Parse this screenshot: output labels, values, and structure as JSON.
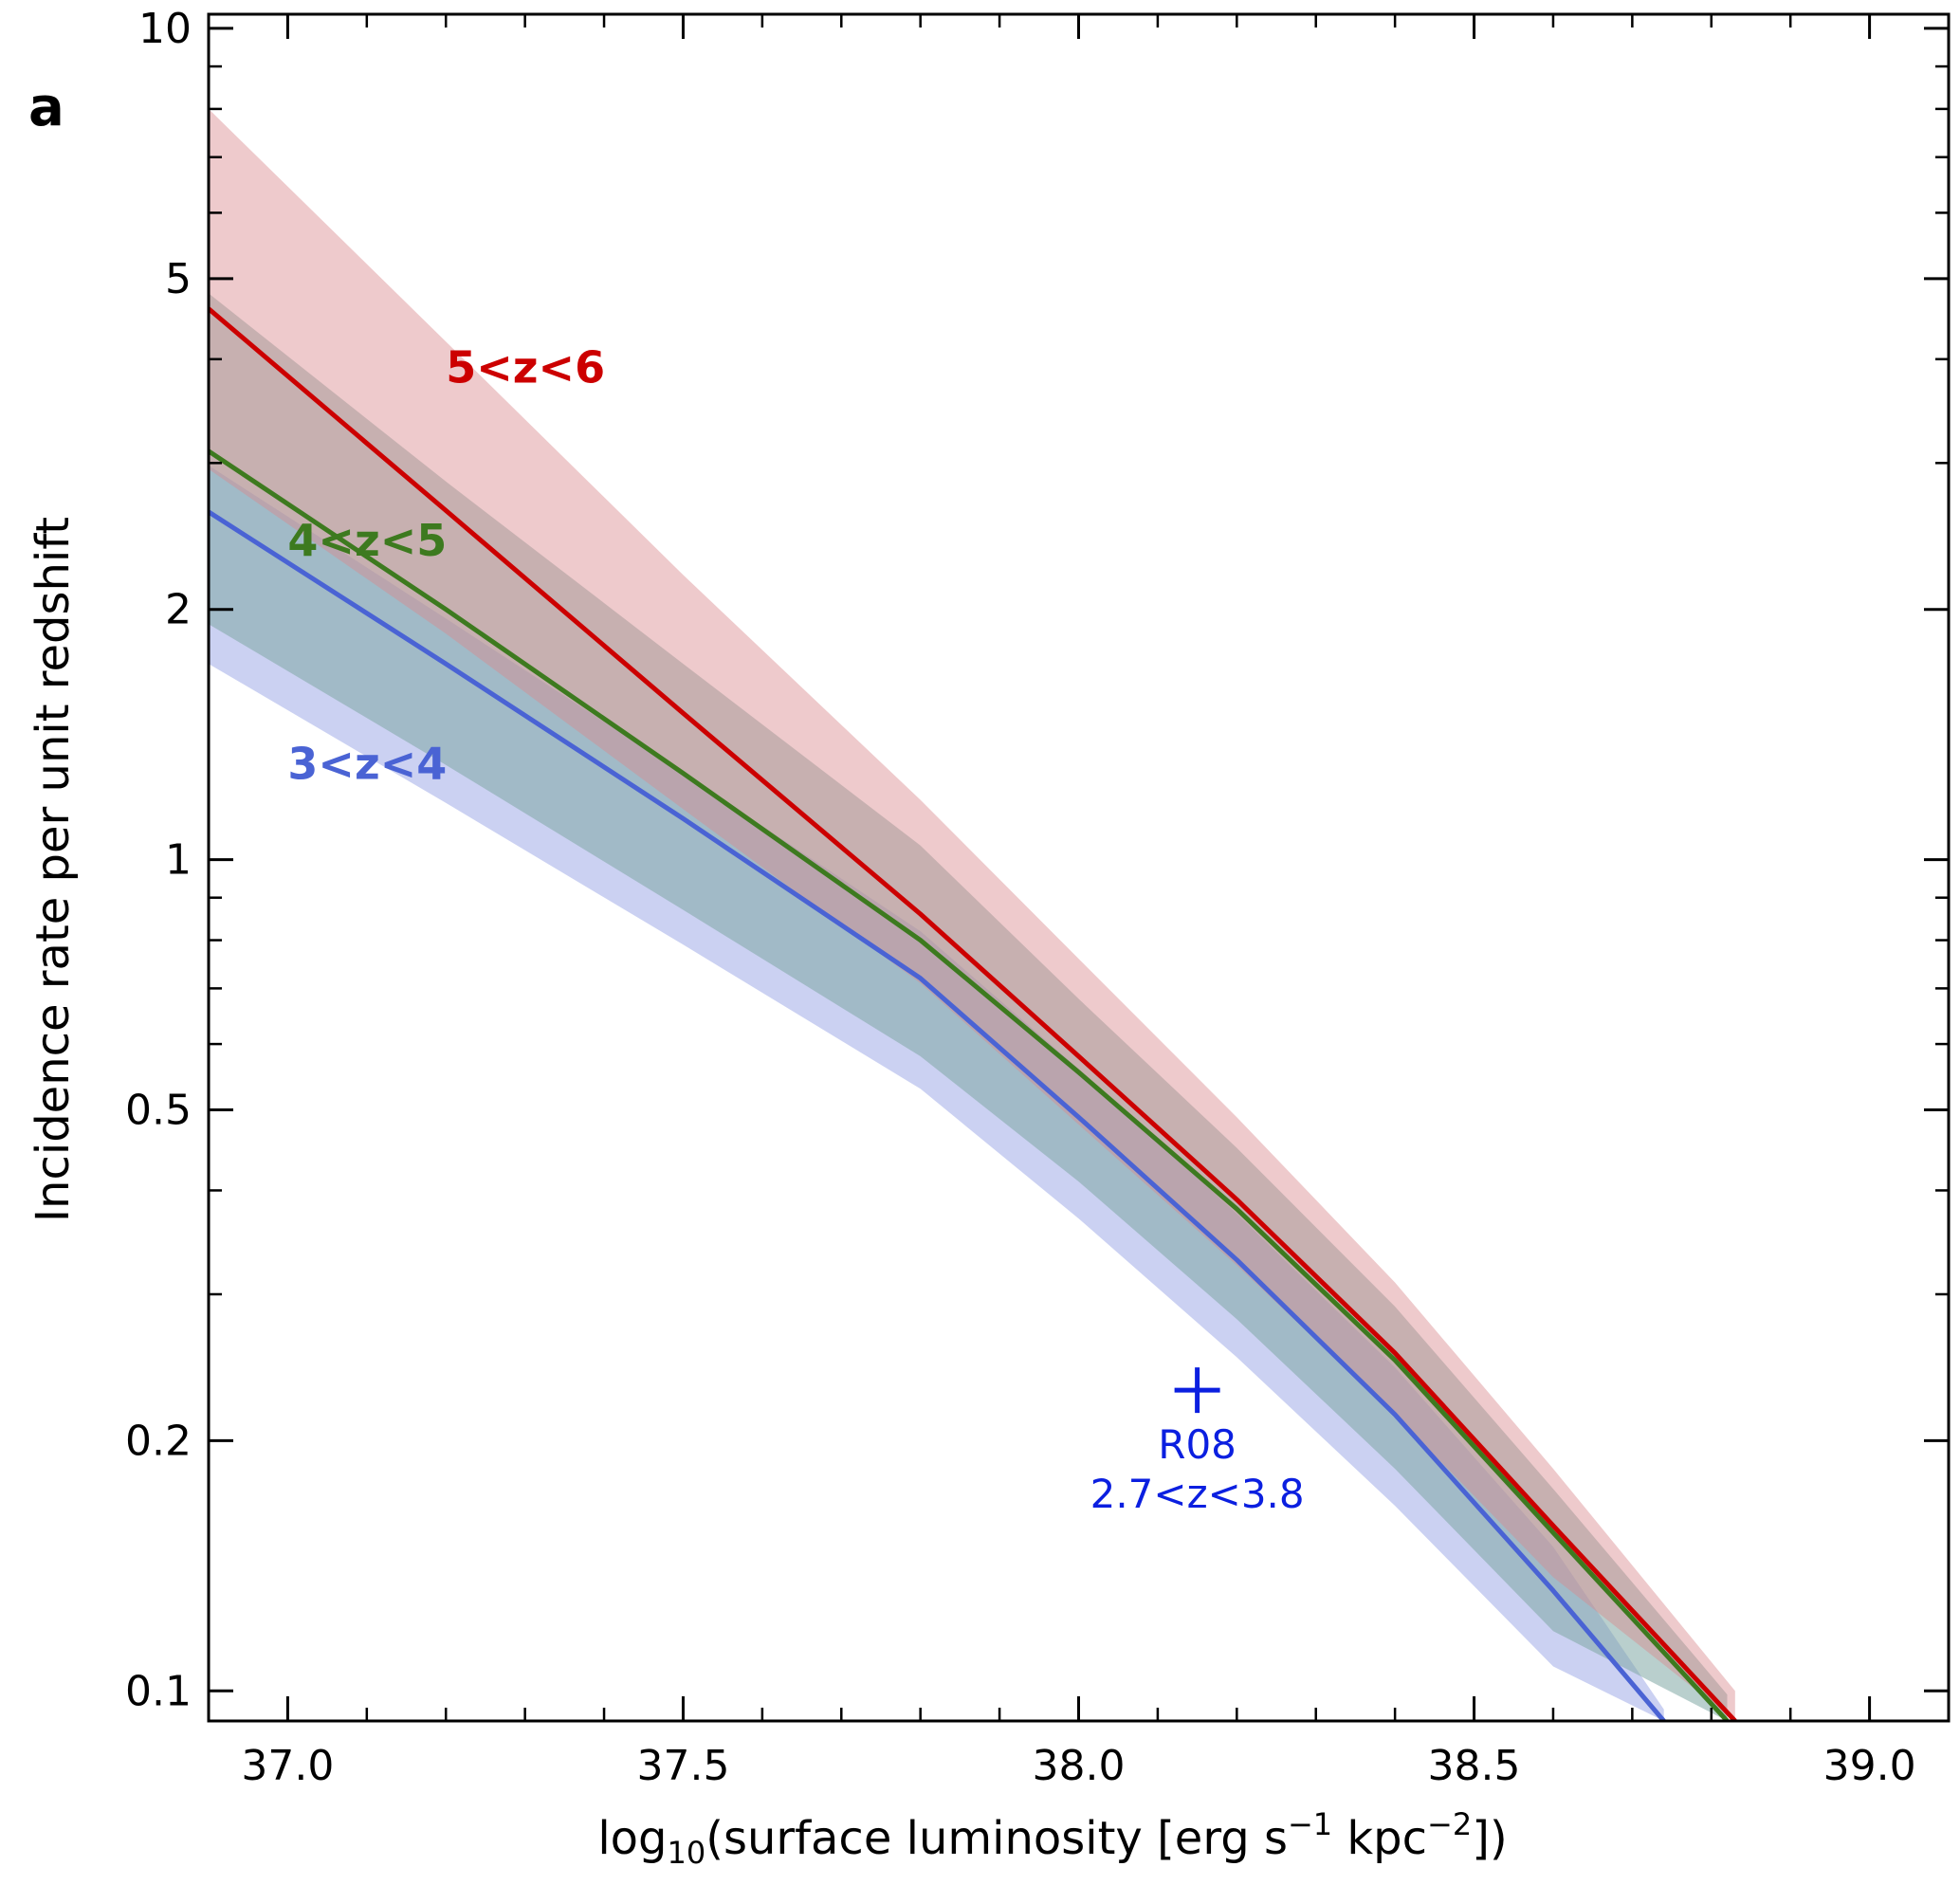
{
  "chart_data": {
    "type": "line",
    "panel_label": "a",
    "xlabel_prefix": "log",
    "xlabel_sub": "10",
    "xlabel_main": "(surface luminosity [erg s",
    "xlabel_sup1": "−1",
    "xlabel_mid": " kpc",
    "xlabel_sup2": "−2",
    "xlabel_end": "])",
    "ylabel": "Incidence rate per unit redshift",
    "xlim": [
      36.9,
      39.1
    ],
    "ylim": [
      0.092,
      10.4
    ],
    "yscale": "log",
    "x_ticks": [
      37.0,
      37.5,
      38.0,
      38.5,
      39.0
    ],
    "x_tick_labels": [
      "37.0",
      "37.5",
      "38.0",
      "38.5",
      "39.0"
    ],
    "y_ticks": [
      0.1,
      0.2,
      0.5,
      1,
      2,
      5,
      10
    ],
    "y_tick_labels": [
      "0.1",
      "0.2",
      "0.5",
      "1",
      "2",
      "5",
      "10"
    ],
    "series": [
      {
        "name": "3<z<4",
        "color": "#4a63d4",
        "band_color": "#8b98e3",
        "band_opacity": 0.45,
        "x": [
          36.9,
          37.2,
          37.5,
          37.8,
          38.0,
          38.2,
          38.4,
          38.6,
          38.74
        ],
        "y": [
          2.62,
          1.72,
          1.12,
          0.72,
          0.49,
          0.33,
          0.215,
          0.132,
          0.092
        ],
        "lower": [
          1.72,
          1.17,
          0.79,
          0.53,
          0.37,
          0.252,
          0.167,
          0.107,
          0.092
        ],
        "upper": [
          2.98,
          1.95,
          1.27,
          0.82,
          0.56,
          0.375,
          0.245,
          0.149,
          0.095
        ],
        "label_x": 37.0,
        "label_y": 1.25
      },
      {
        "name": "4<z<5",
        "color": "#3d7a1f",
        "band_color": "#7fa8a4",
        "band_opacity": 0.55,
        "x": [
          36.9,
          37.2,
          37.5,
          37.8,
          38.0,
          38.2,
          38.4,
          38.6,
          38.82
        ],
        "y": [
          3.1,
          2.0,
          1.27,
          0.8,
          0.555,
          0.38,
          0.25,
          0.155,
          0.092
        ],
        "lower": [
          1.92,
          1.3,
          0.87,
          0.58,
          0.41,
          0.28,
          0.185,
          0.118,
          0.092
        ],
        "upper": [
          4.8,
          2.85,
          1.72,
          1.04,
          0.68,
          0.45,
          0.29,
          0.175,
          0.099
        ],
        "label_x": 37.0,
        "label_y": 2.32
      },
      {
        "name": "5<z<6",
        "color": "#cc0000",
        "band_color": "#d98a8e",
        "band_opacity": 0.45,
        "x": [
          36.9,
          37.2,
          37.5,
          37.8,
          38.0,
          38.2,
          38.4,
          38.6,
          38.83
        ],
        "y": [
          4.6,
          2.63,
          1.5,
          0.86,
          0.58,
          0.39,
          0.255,
          0.158,
          0.092
        ],
        "lower": [
          2.95,
          1.87,
          1.15,
          0.71,
          0.48,
          0.325,
          0.215,
          0.137,
          0.092
        ],
        "upper": [
          8.0,
          4.2,
          2.2,
          1.18,
          0.76,
          0.49,
          0.31,
          0.185,
          0.1
        ],
        "label_x": 37.2,
        "label_y": 3.75
      }
    ],
    "band_overlap": [
      {
        "pair": [
          "4<z<5",
          "5<z<6"
        ],
        "color": "#a89a9c"
      }
    ],
    "point": {
      "name": "R08",
      "x": 38.15,
      "y": 0.23,
      "color": "#0b1fe0",
      "label_line1": "R08",
      "label_line2": "2.7<z<3.8"
    }
  }
}
